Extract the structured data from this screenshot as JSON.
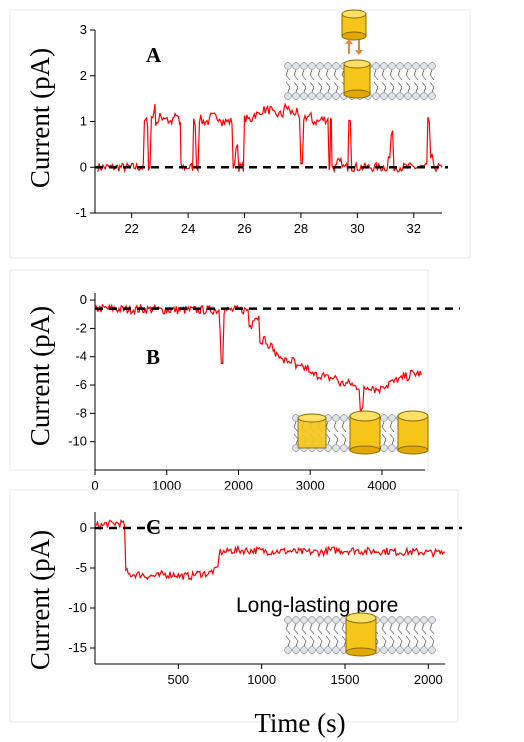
{
  "figure": {
    "xlabel": "Time (s)"
  },
  "chart_data": [
    {
      "panel": "A",
      "type": "line",
      "ylabel": "Current (pA)",
      "xlim": [
        20.7,
        33.0
      ],
      "ylim": [
        -1,
        3
      ],
      "xticks": [
        22,
        24,
        26,
        28,
        30,
        32
      ],
      "yticks": [
        -1,
        0,
        1,
        2,
        3
      ],
      "baseline": 0,
      "series": [
        {
          "color": "#ff0000",
          "x": [
            20.8,
            21.5,
            22.3,
            22.45,
            22.6,
            22.7,
            22.8,
            22.85,
            23.0,
            23.3,
            23.5,
            23.7,
            23.75,
            24.0,
            24.2,
            24.3,
            24.4,
            24.5,
            24.8,
            25.2,
            25.6,
            25.7,
            25.8,
            26.0,
            26.3,
            26.6,
            27.0,
            27.4,
            27.6,
            27.9,
            28.0,
            28.1,
            28.4,
            28.7,
            29.0,
            29.05,
            29.1,
            29.3,
            29.5,
            29.7,
            29.8,
            30.0,
            30.4,
            30.8,
            31.1,
            31.2,
            31.3,
            31.6,
            32.0,
            32.3,
            32.5,
            32.6,
            32.7,
            33.0
          ],
          "y": [
            0,
            0,
            0,
            1.0,
            0,
            1.1,
            1.3,
            1.0,
            1.1,
            1.0,
            1.1,
            0.95,
            0,
            0,
            1.0,
            0,
            1.05,
            1.0,
            1.1,
            1.0,
            0,
            0.5,
            0,
            1.05,
            1.15,
            1.25,
            1.15,
            1.3,
            1.2,
            1.05,
            0,
            1.1,
            1.0,
            1.05,
            0,
            1.1,
            0,
            0.1,
            0,
            1.1,
            0,
            0,
            0,
            0,
            0.2,
            0.7,
            0,
            0,
            0,
            0,
            1.0,
            0.2,
            0,
            0
          ]
        }
      ]
    },
    {
      "panel": "B",
      "type": "line",
      "ylabel": "Current (pA)",
      "xlim": [
        0,
        4600
      ],
      "ylim": [
        -12,
        0.5
      ],
      "xticks": [
        0,
        1000,
        2000,
        3000,
        4000
      ],
      "yticks": [
        0,
        -2,
        -4,
        -6,
        -8,
        -10
      ],
      "baseline": -0.6,
      "series": [
        {
          "color": "#ff0000",
          "x": [
            0,
            300,
            600,
            900,
            1200,
            1500,
            1760,
            1800,
            1850,
            2000,
            2100,
            2150,
            2200,
            2300,
            2400,
            2500,
            2600,
            2800,
            3000,
            3200,
            3400,
            3600,
            3700,
            3750,
            3800,
            3900,
            4000,
            4100,
            4200,
            4300,
            4400,
            4550
          ],
          "y": [
            -0.6,
            -0.65,
            -0.65,
            -0.7,
            -0.7,
            -0.7,
            -4.2,
            -0.7,
            -0.7,
            -0.7,
            -0.7,
            -1.8,
            -1.2,
            -2.8,
            -3.3,
            -3.8,
            -4.3,
            -4.8,
            -5.3,
            -5.5,
            -5.9,
            -6.1,
            -7.8,
            -6.2,
            -6.1,
            -6.3,
            -6.0,
            -5.8,
            -5.6,
            -5.4,
            -5.2,
            -5.3
          ]
        }
      ]
    },
    {
      "panel": "C",
      "type": "line",
      "ylabel": "Current (pA)",
      "xlim": [
        0,
        2100
      ],
      "ylim": [
        -17,
        2
      ],
      "xticks": [
        500,
        1000,
        1500,
        2000
      ],
      "yticks": [
        0,
        -5,
        -10,
        -15
      ],
      "baseline": 0,
      "annotation": "Long-lasting pore",
      "series": [
        {
          "color": "#ff0000",
          "x": [
            0,
            60,
            120,
            170,
            185,
            200,
            300,
            400,
            500,
            600,
            700,
            730,
            745,
            800,
            1000,
            1200,
            1400,
            1600,
            1800,
            2000,
            2100
          ],
          "y": [
            0.3,
            0.5,
            0.6,
            0.4,
            -5.5,
            -5.8,
            -6.0,
            -5.8,
            -6.0,
            -5.7,
            -5.4,
            -5.0,
            -3.0,
            -2.8,
            -2.9,
            -3.0,
            -2.8,
            -2.9,
            -3.0,
            -3.1,
            -3.0
          ]
        }
      ]
    }
  ]
}
